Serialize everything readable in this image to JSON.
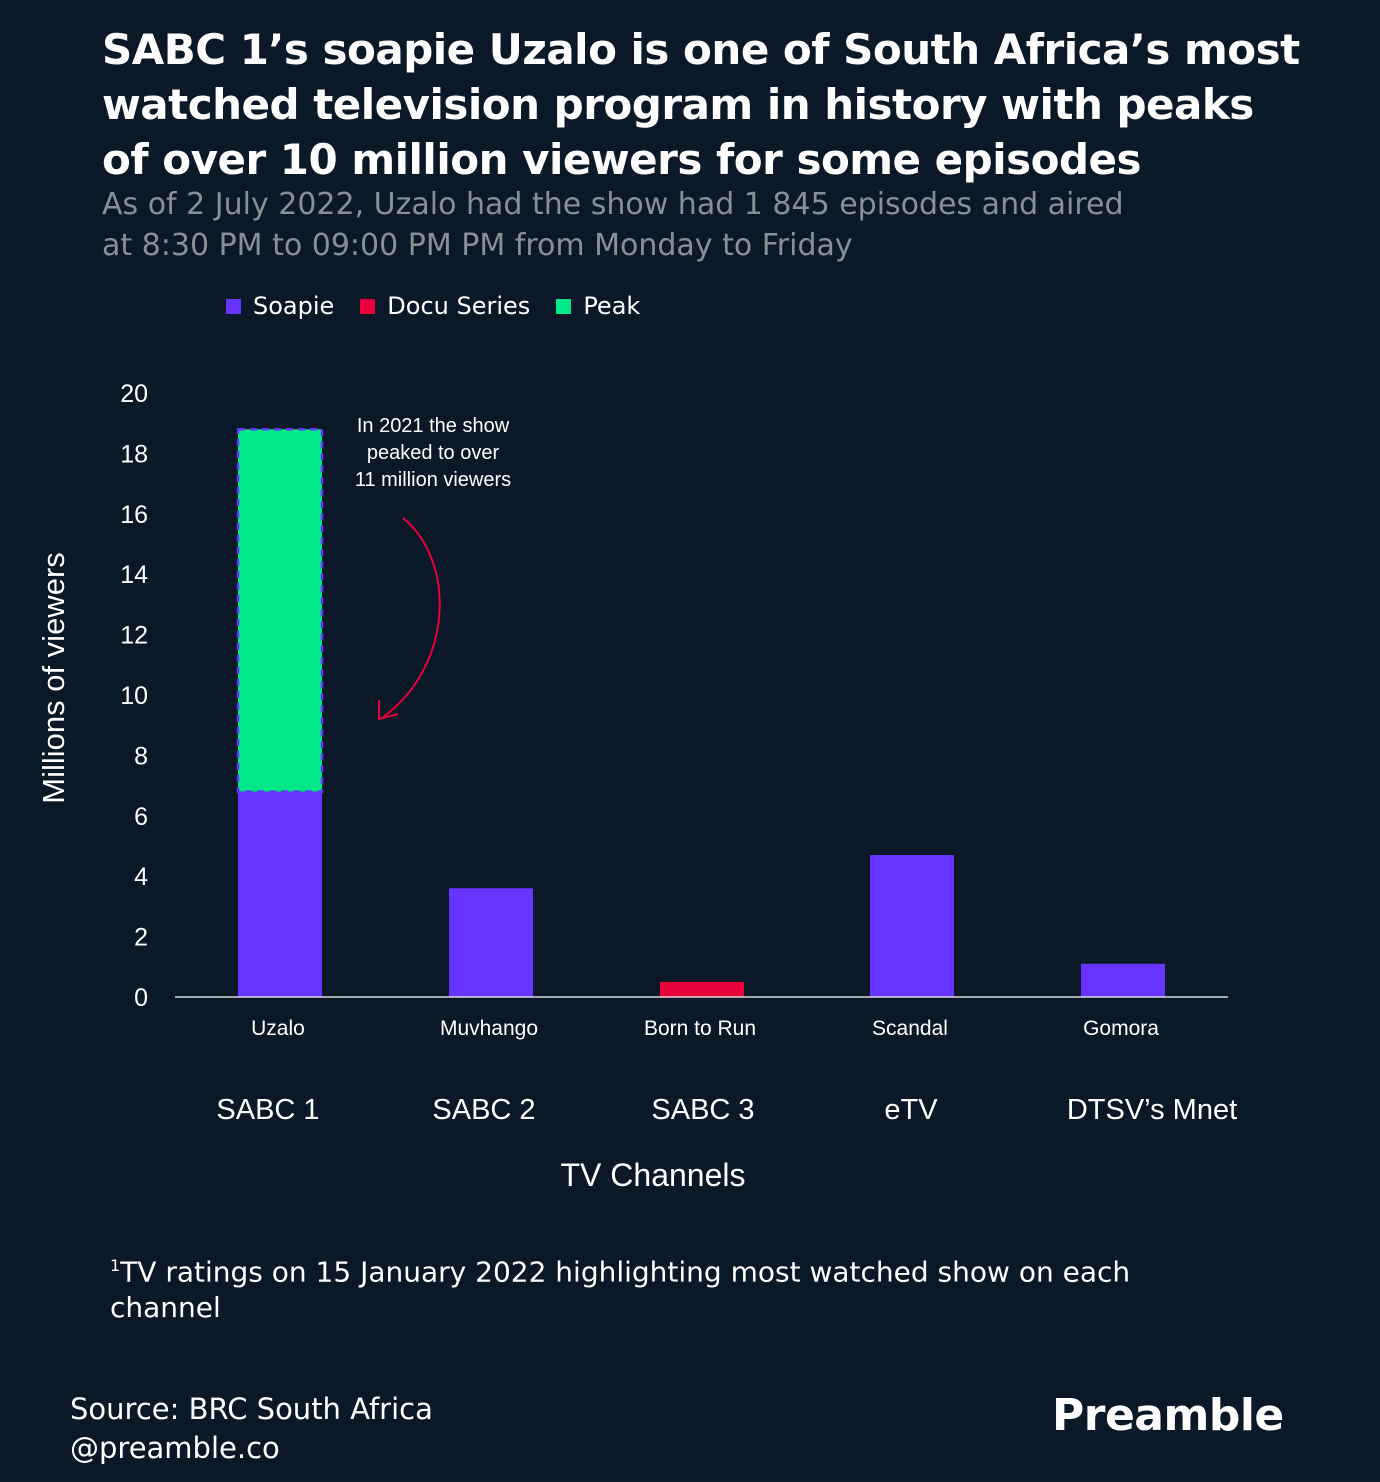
{
  "title": "SABC 1’s soapie Uzalo is one of South Africa’s most watched television program in history with peaks of over 10 million viewers for some episodes",
  "subtitle": "As of 2 July 2022, Uzalo had the show had 1 845 episodes and aired at 8:30 PM to 09:00 PM PM from Monday to Friday",
  "legend": [
    {
      "label": "Soapie",
      "color": "#6633ff"
    },
    {
      "label": "Docu Series",
      "color": "#e8003d"
    },
    {
      "label": "Peak",
      "color": "#00e887"
    }
  ],
  "chart_data": {
    "type": "bar",
    "stacked": true,
    "categories": [
      "Uzalo",
      "Muvhango",
      "Born to Run",
      "Scandal",
      "Gomora"
    ],
    "channels": [
      "SABC 1",
      "SABC 2",
      "SABC 3",
      "eTV",
      "DTSV’s Mnet"
    ],
    "series": [
      {
        "name": "Soapie",
        "color": "#6633ff",
        "values": [
          6.8,
          3.6,
          0,
          4.7,
          1.1
        ]
      },
      {
        "name": "Docu Series",
        "color": "#e8003d",
        "values": [
          0,
          0,
          0.5,
          0,
          0
        ]
      },
      {
        "name": "Peak",
        "color": "#00e887",
        "values": [
          12.0,
          0,
          0,
          0,
          0
        ]
      }
    ],
    "ylabel": "Millions of viewers",
    "xlabel": "TV Channels",
    "ylim": [
      0,
      20
    ],
    "yticks": [
      0,
      2,
      4,
      6,
      8,
      10,
      12,
      14,
      16,
      18,
      20
    ],
    "grid": false,
    "legend_position": "top-left",
    "annotation": "In 2021 the show peaked to over 11 million viewers",
    "annotation_lines": [
      "In 2021 the show",
      "peaked to over",
      "11 million viewers"
    ]
  },
  "footnote": {
    "marker": "1",
    "text": "TV ratings on 15 January 2022 highlighting most watched show on each channel"
  },
  "source": {
    "line1": "Source: BRC South Africa",
    "line2": "@preamble.co"
  },
  "brand": "Preamble"
}
